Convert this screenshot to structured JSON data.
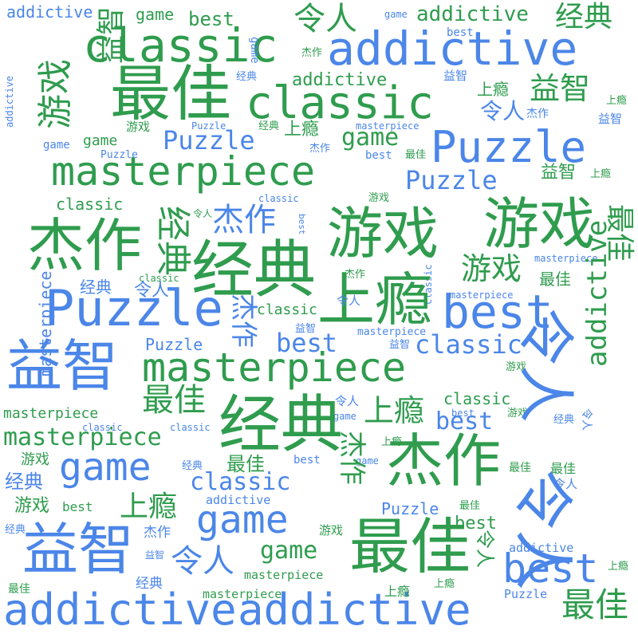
{
  "palette": {
    "blue": "#4b86e8",
    "green": "#2f9c4e",
    "background": "#ffffff"
  },
  "words": [
    "masterpiece",
    "masterpiece",
    "masterpiece",
    "masterpiece",
    "masterpiece",
    "masterpiece",
    "masterpiece",
    "masterpiece",
    "masterpiece",
    "masterpiece",
    "masterpiece",
    "Puzzle",
    "Puzzle",
    "Puzzle",
    "Puzzle",
    "Puzzle",
    "Puzzle",
    "Puzzle",
    "Puzzle",
    "Puzzle",
    "classic",
    "classic",
    "classic",
    "classic",
    "classic",
    "classic",
    "classic",
    "classic",
    "classic",
    "classic",
    "classic",
    "classic",
    "addictive",
    "addictive",
    "addictive",
    "addictive",
    "addictive",
    "addictive",
    "addictive",
    "addictive",
    "addictive",
    "addictive",
    "game",
    "game",
    "game",
    "game",
    "game",
    "game",
    "game",
    "game",
    "game",
    "game",
    "game",
    "best",
    "best",
    "best",
    "best",
    "best",
    "best",
    "best",
    "best",
    "best",
    "best",
    "best",
    "best",
    "游戏",
    "游戏",
    "游戏",
    "游戏",
    "游戏",
    "游戏",
    "游戏",
    "游戏",
    "游戏",
    "游戏",
    "游戏",
    "杰作",
    "杰作",
    "杰作",
    "杰作",
    "杰作",
    "杰作",
    "杰作",
    "杰作",
    "杰作",
    "杰作",
    "经典",
    "经典",
    "经典",
    "经典",
    "经典",
    "经典",
    "经典",
    "经典",
    "经典",
    "经典",
    "经典",
    "经典",
    "上瘾",
    "上瘾",
    "上瘾",
    "上瘾",
    "上瘾",
    "上瘾",
    "上瘾",
    "上瘾",
    "上瘾",
    "上瘾",
    "上瘾",
    "益智",
    "益智",
    "益智",
    "益智",
    "益智",
    "益智",
    "益智",
    "益智",
    "益智",
    "益智",
    "最佳",
    "最佳",
    "最佳",
    "最佳",
    "最佳",
    "最佳",
    "最佳",
    "最佳",
    "最佳",
    "最佳",
    "最佳",
    "最佳",
    "令人",
    "令人",
    "令人",
    "令人",
    "令人",
    "令人",
    "令人",
    "令人",
    "令人",
    "令人",
    "令人",
    "令人"
  ]
}
